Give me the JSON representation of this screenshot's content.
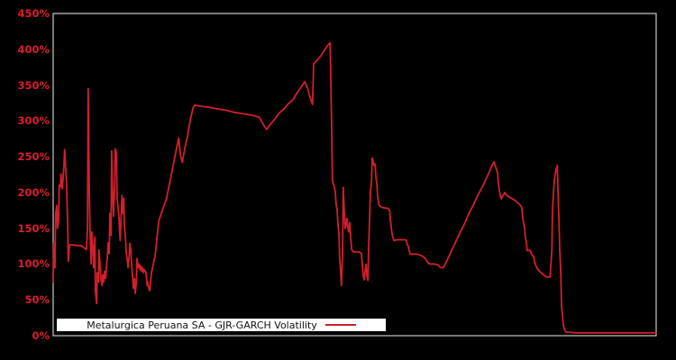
{
  "window": {
    "background": "#000000"
  },
  "chart_data": {
    "type": "line",
    "title": "",
    "xlabel": "",
    "ylabel": "",
    "grid": false,
    "plot_bg": "#000000",
    "border_color": "#c9c9c9",
    "tick_label_color": "#d8202c",
    "ylim": [
      0,
      450
    ],
    "x_axis": {
      "labels_visible": false,
      "note": "x is time index shown as percent of axis range 0-100"
    },
    "yticks": [
      {
        "label": "0%",
        "value": 0
      },
      {
        "label": "50%",
        "value": 50
      },
      {
        "label": "100%",
        "value": 100
      },
      {
        "label": "150%",
        "value": 150
      },
      {
        "label": "200%",
        "value": 200
      },
      {
        "label": "250%",
        "value": 250
      },
      {
        "label": "300%",
        "value": 300
      },
      {
        "label": "350%",
        "value": 350
      },
      {
        "label": "400%",
        "value": 400
      },
      {
        "label": "450%",
        "value": 450
      }
    ],
    "legend": {
      "label": "Metalurgica Peruana SA - GJR-GARCH Volatility",
      "position": "lower-left-inside",
      "background": "#ffffff",
      "text_color": "#111111",
      "line_color": "#d21f2b"
    },
    "series": [
      {
        "name": "Metalurgica Peruana SA - GJR-GARCH Volatility",
        "color": "#d21f2b",
        "points": [
          [
            0,
            75
          ],
          [
            0.1,
            130
          ],
          [
            0.3,
            95
          ],
          [
            0.4,
            170
          ],
          [
            0.6,
            182
          ],
          [
            0.7,
            150
          ],
          [
            0.9,
            160
          ],
          [
            1.0,
            210
          ],
          [
            1.2,
            208
          ],
          [
            1.3,
            226
          ],
          [
            1.5,
            205
          ],
          [
            1.6,
            215
          ],
          [
            1.8,
            240
          ],
          [
            1.9,
            260
          ],
          [
            2.1,
            230
          ],
          [
            2.2,
            217
          ],
          [
            2.4,
            155
          ],
          [
            2.5,
            104
          ],
          [
            2.7,
            127
          ],
          [
            3.1,
            127
          ],
          [
            3.9,
            126
          ],
          [
            4.6,
            126
          ],
          [
            5.1,
            123
          ],
          [
            5.5,
            120
          ],
          [
            5.7,
            150
          ],
          [
            5.8,
            345
          ],
          [
            6.0,
            200
          ],
          [
            6.1,
            150
          ],
          [
            6.3,
            100
          ],
          [
            6.4,
            145
          ],
          [
            6.6,
            120
          ],
          [
            6.7,
            95
          ],
          [
            6.9,
            138
          ],
          [
            7.0,
            63
          ],
          [
            7.2,
            45
          ],
          [
            7.3,
            88
          ],
          [
            7.5,
            75
          ],
          [
            7.6,
            120
          ],
          [
            7.8,
            95
          ],
          [
            7.9,
            80
          ],
          [
            8.1,
            70
          ],
          [
            8.2,
            85
          ],
          [
            8.4,
            75
          ],
          [
            8.5,
            90
          ],
          [
            8.7,
            80
          ],
          [
            8.8,
            95
          ],
          [
            9.0,
            110
          ],
          [
            9.1,
            130
          ],
          [
            9.3,
            115
          ],
          [
            9.4,
            171
          ],
          [
            9.6,
            140
          ],
          [
            9.7,
            258
          ],
          [
            9.9,
            190
          ],
          [
            10.0,
            167
          ],
          [
            10.2,
            210
          ],
          [
            10.3,
            261
          ],
          [
            10.5,
            255
          ],
          [
            10.6,
            192
          ],
          [
            10.8,
            175
          ],
          [
            10.9,
            167
          ],
          [
            11.1,
            133
          ],
          [
            11.2,
            150
          ],
          [
            11.4,
            196
          ],
          [
            11.5,
            171
          ],
          [
            11.7,
            192
          ],
          [
            11.8,
            155
          ],
          [
            12.0,
            135
          ],
          [
            12.1,
            117
          ],
          [
            12.3,
            105
          ],
          [
            12.4,
            95
          ],
          [
            12.6,
            110
          ],
          [
            12.7,
            129
          ],
          [
            12.9,
            118
          ],
          [
            13.0,
            100
          ],
          [
            13.2,
            79
          ],
          [
            13.3,
            66
          ],
          [
            13.5,
            80
          ],
          [
            13.6,
            59
          ],
          [
            13.8,
            75
          ],
          [
            13.9,
            108
          ],
          [
            14.1,
            95
          ],
          [
            14.2,
            100
          ],
          [
            14.4,
            92
          ],
          [
            14.5,
            98
          ],
          [
            14.7,
            90
          ],
          [
            14.8,
            95
          ],
          [
            15.0,
            88
          ],
          [
            15.1,
            92
          ],
          [
            15.3,
            90
          ],
          [
            15.4,
            88
          ],
          [
            15.6,
            70
          ],
          [
            15.7,
            75
          ],
          [
            15.8,
            68
          ],
          [
            16.0,
            63
          ],
          [
            16.1,
            70
          ],
          [
            16.3,
            88
          ],
          [
            16.6,
            100
          ],
          [
            16.9,
            112
          ],
          [
            17.5,
            160
          ],
          [
            18.1,
            175
          ],
          [
            18.8,
            192
          ],
          [
            19.6,
            225
          ],
          [
            20.3,
            255
          ],
          [
            20.8,
            276
          ],
          [
            21.1,
            252
          ],
          [
            21.4,
            242
          ],
          [
            21.8,
            260
          ],
          [
            22.3,
            280
          ],
          [
            22.7,
            300
          ],
          [
            23.2,
            318
          ],
          [
            23.5,
            322
          ],
          [
            24.1,
            321
          ],
          [
            24.8,
            320
          ],
          [
            25.9,
            319
          ],
          [
            27.1,
            317
          ],
          [
            28.6,
            315
          ],
          [
            30.0,
            312
          ],
          [
            31.5,
            310
          ],
          [
            33.0,
            308
          ],
          [
            34.2,
            305
          ],
          [
            34.5,
            300
          ],
          [
            35.0,
            293
          ],
          [
            35.4,
            288
          ],
          [
            36.0,
            295
          ],
          [
            36.8,
            303
          ],
          [
            37.5,
            311
          ],
          [
            38.3,
            317
          ],
          [
            39.0,
            324
          ],
          [
            39.8,
            330
          ],
          [
            40.5,
            340
          ],
          [
            41.1,
            347
          ],
          [
            41.7,
            355
          ],
          [
            42.2,
            345
          ],
          [
            42.6,
            333
          ],
          [
            43.0,
            323
          ],
          [
            43.2,
            380
          ],
          [
            43.8,
            385
          ],
          [
            44.4,
            391
          ],
          [
            45.0,
            399
          ],
          [
            45.4,
            404
          ],
          [
            45.9,
            409
          ],
          [
            46.0,
            380
          ],
          [
            46.2,
            280
          ],
          [
            46.3,
            217
          ],
          [
            46.6,
            208
          ],
          [
            46.8,
            200
          ],
          [
            46.9,
            185
          ],
          [
            47.1,
            175
          ],
          [
            47.2,
            158
          ],
          [
            47.4,
            142
          ],
          [
            47.5,
            110
          ],
          [
            47.7,
            85
          ],
          [
            47.8,
            70
          ],
          [
            48.0,
            120
          ],
          [
            48.1,
            207
          ],
          [
            48.3,
            170
          ],
          [
            48.4,
            150
          ],
          [
            48.6,
            155
          ],
          [
            48.7,
            164
          ],
          [
            48.9,
            150
          ],
          [
            49.0,
            145
          ],
          [
            49.2,
            158
          ],
          [
            49.3,
            140
          ],
          [
            49.5,
            120
          ],
          [
            49.8,
            117
          ],
          [
            50.2,
            117
          ],
          [
            50.7,
            117
          ],
          [
            51.1,
            115
          ],
          [
            51.4,
            85
          ],
          [
            51.6,
            78
          ],
          [
            51.7,
            90
          ],
          [
            51.9,
            100
          ],
          [
            52.0,
            85
          ],
          [
            52.2,
            77
          ],
          [
            52.3,
            120
          ],
          [
            52.5,
            171
          ],
          [
            52.6,
            200
          ],
          [
            52.8,
            217
          ],
          [
            52.9,
            248
          ],
          [
            53.1,
            243
          ],
          [
            53.2,
            238
          ],
          [
            53.4,
            240
          ],
          [
            53.5,
            223
          ],
          [
            53.7,
            210
          ],
          [
            53.8,
            195
          ],
          [
            54.0,
            183
          ],
          [
            54.3,
            180
          ],
          [
            54.7,
            179
          ],
          [
            55.2,
            178
          ],
          [
            55.5,
            178
          ],
          [
            55.8,
            175
          ],
          [
            55.9,
            163
          ],
          [
            56.2,
            142
          ],
          [
            56.5,
            133
          ],
          [
            57.0,
            134
          ],
          [
            57.7,
            134
          ],
          [
            58.5,
            134
          ],
          [
            58.7,
            128
          ],
          [
            58.9,
            125
          ],
          [
            59.0,
            120
          ],
          [
            59.2,
            114
          ],
          [
            59.6,
            114
          ],
          [
            60.2,
            114
          ],
          [
            60.8,
            113
          ],
          [
            61.4,
            110
          ],
          [
            61.7,
            108
          ],
          [
            62.0,
            104
          ],
          [
            62.2,
            101
          ],
          [
            62.6,
            100
          ],
          [
            63.2,
            100
          ],
          [
            63.8,
            99
          ],
          [
            64.1,
            96
          ],
          [
            64.4,
            95
          ],
          [
            64.7,
            95
          ],
          [
            65.2,
            103
          ],
          [
            65.9,
            116
          ],
          [
            66.7,
            130
          ],
          [
            67.4,
            143
          ],
          [
            68.2,
            156
          ],
          [
            68.9,
            170
          ],
          [
            69.7,
            183
          ],
          [
            70.4,
            196
          ],
          [
            71.2,
            208
          ],
          [
            71.9,
            221
          ],
          [
            72.6,
            234
          ],
          [
            73.1,
            243
          ],
          [
            73.4,
            235
          ],
          [
            73.7,
            227
          ],
          [
            73.8,
            214
          ],
          [
            74.1,
            198
          ],
          [
            74.3,
            191
          ],
          [
            74.6,
            196
          ],
          [
            74.9,
            200
          ],
          [
            75.2,
            196
          ],
          [
            75.6,
            194
          ],
          [
            76.4,
            190
          ],
          [
            77.0,
            186
          ],
          [
            77.4,
            183
          ],
          [
            77.7,
            179
          ],
          [
            77.9,
            163
          ],
          [
            78.2,
            148
          ],
          [
            78.3,
            138
          ],
          [
            78.5,
            128
          ],
          [
            78.6,
            119
          ],
          [
            79.1,
            119
          ],
          [
            79.4,
            113
          ],
          [
            79.7,
            110
          ],
          [
            79.8,
            104
          ],
          [
            80.1,
            97
          ],
          [
            80.4,
            92
          ],
          [
            80.9,
            88
          ],
          [
            81.2,
            86
          ],
          [
            81.5,
            84
          ],
          [
            81.9,
            82
          ],
          [
            82.4,
            82
          ],
          [
            82.7,
            120
          ],
          [
            82.8,
            175
          ],
          [
            83.1,
            217
          ],
          [
            83.4,
            232
          ],
          [
            83.6,
            238
          ],
          [
            83.7,
            204
          ],
          [
            83.9,
            154
          ],
          [
            84.0,
            120
          ],
          [
            84.2,
            83
          ],
          [
            84.3,
            41
          ],
          [
            84.5,
            25
          ],
          [
            84.6,
            15
          ],
          [
            84.8,
            8
          ],
          [
            85.1,
            5
          ],
          [
            86.9,
            4
          ],
          [
            89.8,
            4
          ],
          [
            92.8,
            4
          ],
          [
            95.8,
            4
          ],
          [
            98.8,
            4
          ],
          [
            100,
            4
          ]
        ]
      }
    ]
  }
}
